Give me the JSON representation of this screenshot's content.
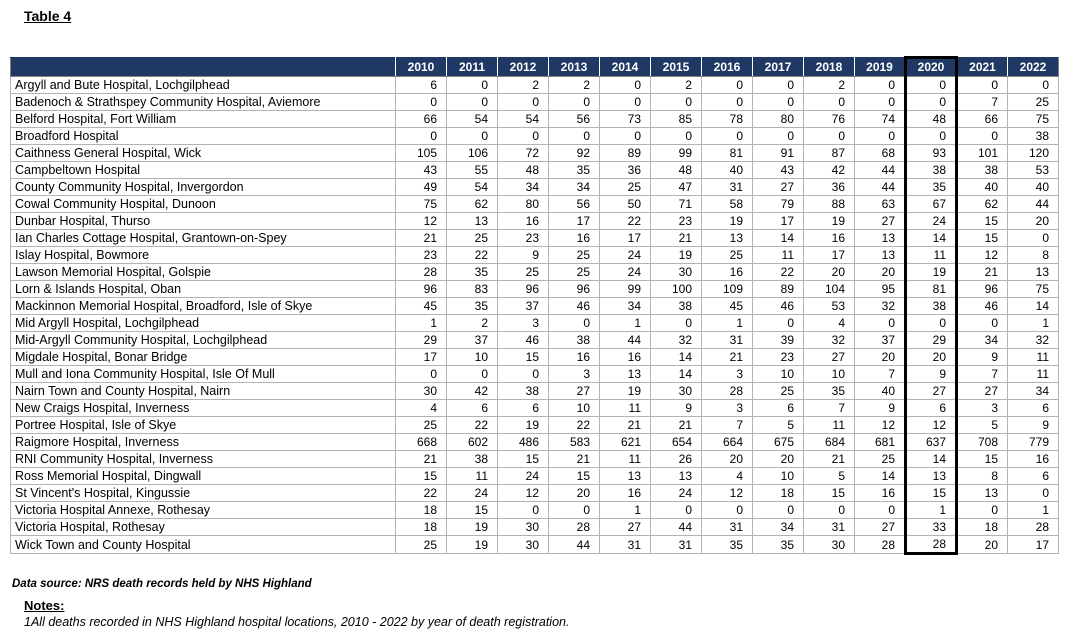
{
  "page": {
    "title": "Table 4"
  },
  "table": {
    "year_headers": [
      "2010",
      "2011",
      "2012",
      "2013",
      "2014",
      "2015",
      "2016",
      "2017",
      "2018",
      "2019",
      "2020",
      "2021",
      "2022"
    ],
    "highlighted_year": "2020",
    "rows": [
      {
        "hospital": "Argyll and Bute Hospital, Lochgilphead",
        "values": [
          6,
          0,
          2,
          2,
          0,
          2,
          0,
          0,
          2,
          0,
          0,
          0,
          0
        ]
      },
      {
        "hospital": "Badenoch & Strathspey Community Hospital, Aviemore",
        "values": [
          0,
          0,
          0,
          0,
          0,
          0,
          0,
          0,
          0,
          0,
          0,
          7,
          25
        ]
      },
      {
        "hospital": "Belford Hospital, Fort William",
        "values": [
          66,
          54,
          54,
          56,
          73,
          85,
          78,
          80,
          76,
          74,
          48,
          66,
          75
        ]
      },
      {
        "hospital": "Broadford Hospital",
        "values": [
          0,
          0,
          0,
          0,
          0,
          0,
          0,
          0,
          0,
          0,
          0,
          0,
          38
        ]
      },
      {
        "hospital": "Caithness General Hospital, Wick",
        "values": [
          105,
          106,
          72,
          92,
          89,
          99,
          81,
          91,
          87,
          68,
          93,
          101,
          120
        ]
      },
      {
        "hospital": "Campbeltown Hospital",
        "values": [
          43,
          55,
          48,
          35,
          36,
          48,
          40,
          43,
          42,
          44,
          38,
          38,
          53
        ]
      },
      {
        "hospital": "County Community Hospital, Invergordon",
        "values": [
          49,
          54,
          34,
          34,
          25,
          47,
          31,
          27,
          36,
          44,
          35,
          40,
          40
        ]
      },
      {
        "hospital": "Cowal Community Hospital, Dunoon",
        "values": [
          75,
          62,
          80,
          56,
          50,
          71,
          58,
          79,
          88,
          63,
          67,
          62,
          44
        ]
      },
      {
        "hospital": "Dunbar Hospital, Thurso",
        "values": [
          12,
          13,
          16,
          17,
          22,
          23,
          19,
          17,
          19,
          27,
          24,
          15,
          20
        ]
      },
      {
        "hospital": "Ian Charles Cottage Hospital, Grantown-on-Spey",
        "values": [
          21,
          25,
          23,
          16,
          17,
          21,
          13,
          14,
          16,
          13,
          14,
          15,
          0
        ]
      },
      {
        "hospital": "Islay Hospital, Bowmore",
        "values": [
          23,
          22,
          9,
          25,
          24,
          19,
          25,
          11,
          17,
          13,
          11,
          12,
          8
        ]
      },
      {
        "hospital": "Lawson Memorial Hospital, Golspie",
        "values": [
          28,
          35,
          25,
          25,
          24,
          30,
          16,
          22,
          20,
          20,
          19,
          21,
          13
        ]
      },
      {
        "hospital": "Lorn & Islands Hospital, Oban",
        "values": [
          96,
          83,
          96,
          96,
          99,
          100,
          109,
          89,
          104,
          95,
          81,
          96,
          75
        ]
      },
      {
        "hospital": "Mackinnon Memorial Hospital, Broadford, Isle of Skye",
        "values": [
          45,
          35,
          37,
          46,
          34,
          38,
          45,
          46,
          53,
          32,
          38,
          46,
          14
        ]
      },
      {
        "hospital": "Mid Argyll Hospital, Lochgilphead",
        "values": [
          1,
          2,
          3,
          0,
          1,
          0,
          1,
          0,
          4,
          0,
          0,
          0,
          1
        ]
      },
      {
        "hospital": "Mid-Argyll Community Hospital, Lochgilphead",
        "values": [
          29,
          37,
          46,
          38,
          44,
          32,
          31,
          39,
          32,
          37,
          29,
          34,
          32
        ]
      },
      {
        "hospital": "Migdale Hospital, Bonar Bridge",
        "values": [
          17,
          10,
          15,
          16,
          16,
          14,
          21,
          23,
          27,
          20,
          20,
          9,
          11
        ]
      },
      {
        "hospital": "Mull and Iona Community Hospital, Isle Of Mull",
        "values": [
          0,
          0,
          0,
          3,
          13,
          14,
          3,
          10,
          10,
          7,
          9,
          7,
          11
        ]
      },
      {
        "hospital": "Nairn Town and County Hospital, Nairn",
        "values": [
          30,
          42,
          38,
          27,
          19,
          30,
          28,
          25,
          35,
          40,
          27,
          27,
          34
        ]
      },
      {
        "hospital": "New Craigs Hospital, Inverness",
        "values": [
          4,
          6,
          6,
          10,
          11,
          9,
          3,
          6,
          7,
          9,
          6,
          3,
          6
        ]
      },
      {
        "hospital": "Portree Hospital, Isle of Skye",
        "values": [
          25,
          22,
          19,
          22,
          21,
          21,
          7,
          5,
          11,
          12,
          12,
          5,
          9
        ]
      },
      {
        "hospital": "Raigmore Hospital, Inverness",
        "values": [
          668,
          602,
          486,
          583,
          621,
          654,
          664,
          675,
          684,
          681,
          637,
          708,
          779
        ]
      },
      {
        "hospital": "RNI Community Hospital, Inverness",
        "values": [
          21,
          38,
          15,
          21,
          11,
          26,
          20,
          20,
          21,
          25,
          14,
          15,
          16
        ]
      },
      {
        "hospital": "Ross Memorial Hospital, Dingwall",
        "values": [
          15,
          11,
          24,
          15,
          13,
          13,
          4,
          10,
          5,
          14,
          13,
          8,
          6
        ]
      },
      {
        "hospital": "St Vincent's Hospital, Kingussie",
        "values": [
          22,
          24,
          12,
          20,
          16,
          24,
          12,
          18,
          15,
          16,
          15,
          13,
          0
        ]
      },
      {
        "hospital": "Victoria Hospital Annexe, Rothesay",
        "values": [
          18,
          15,
          0,
          0,
          1,
          0,
          0,
          0,
          0,
          0,
          1,
          0,
          1
        ]
      },
      {
        "hospital": "Victoria Hospital, Rothesay",
        "values": [
          18,
          19,
          30,
          28,
          27,
          44,
          31,
          34,
          31,
          27,
          33,
          18,
          28
        ]
      },
      {
        "hospital": "Wick Town and County Hospital",
        "values": [
          25,
          19,
          30,
          44,
          31,
          31,
          35,
          35,
          30,
          28,
          28,
          20,
          17
        ]
      }
    ],
    "footer": "Data source: NRS death records held by NHS Highland"
  },
  "notes": {
    "heading": "Notes:",
    "items": [
      "1All deaths recorded in NHS Highland hospital locations, 2010 - 2022 by year of death registration."
    ]
  },
  "colors": {
    "header_bg": "#1f3864",
    "grid_line": "#b3b3b3",
    "highlight_border": "#000000"
  }
}
